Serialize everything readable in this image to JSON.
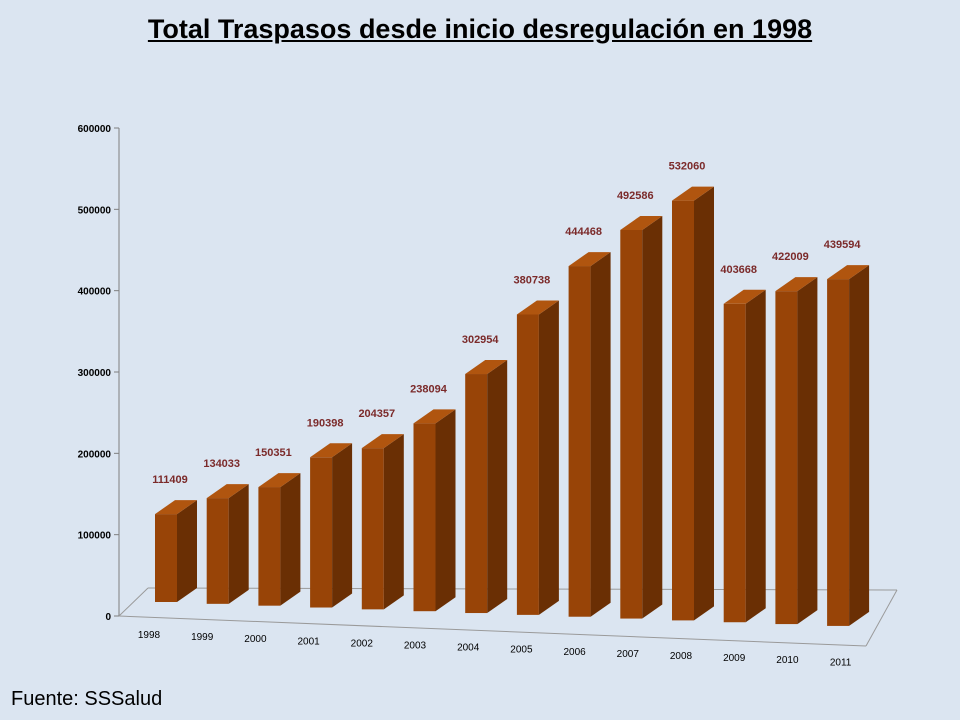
{
  "slide": {
    "title": "Total Traspasos desde inicio desregulación en 1998",
    "source": "Fuente: SSSalud"
  },
  "colors": {
    "bar_front": "#984407",
    "bar_side": "#6a2f04",
    "bar_top": "#b0550f",
    "label": "#7b2a2a"
  },
  "chart_data": {
    "type": "bar",
    "title": "Total Traspasos desde inicio desregulación en 1998",
    "categories": [
      "1998",
      "1999",
      "2000",
      "2001",
      "2002",
      "2003",
      "2004",
      "2005",
      "2006",
      "2007",
      "2008",
      "2009",
      "2010",
      "2011"
    ],
    "values": [
      111409,
      134033,
      150351,
      190398,
      204357,
      238094,
      302954,
      380738,
      444468,
      492586,
      532060,
      403668,
      422009,
      439594
    ],
    "data_labels": [
      "111409",
      "134033",
      "150351",
      "190398",
      "204357",
      "238094",
      "302954",
      "380738",
      "444468",
      "492586",
      "532060",
      "403668",
      "422009",
      "439594"
    ],
    "y_ticks": [
      "0",
      "100000",
      "200000",
      "300000",
      "400000",
      "500000",
      "600000"
    ],
    "ylim": [
      0,
      600000
    ],
    "grid": false,
    "legend": "none",
    "style": "3d-column"
  }
}
